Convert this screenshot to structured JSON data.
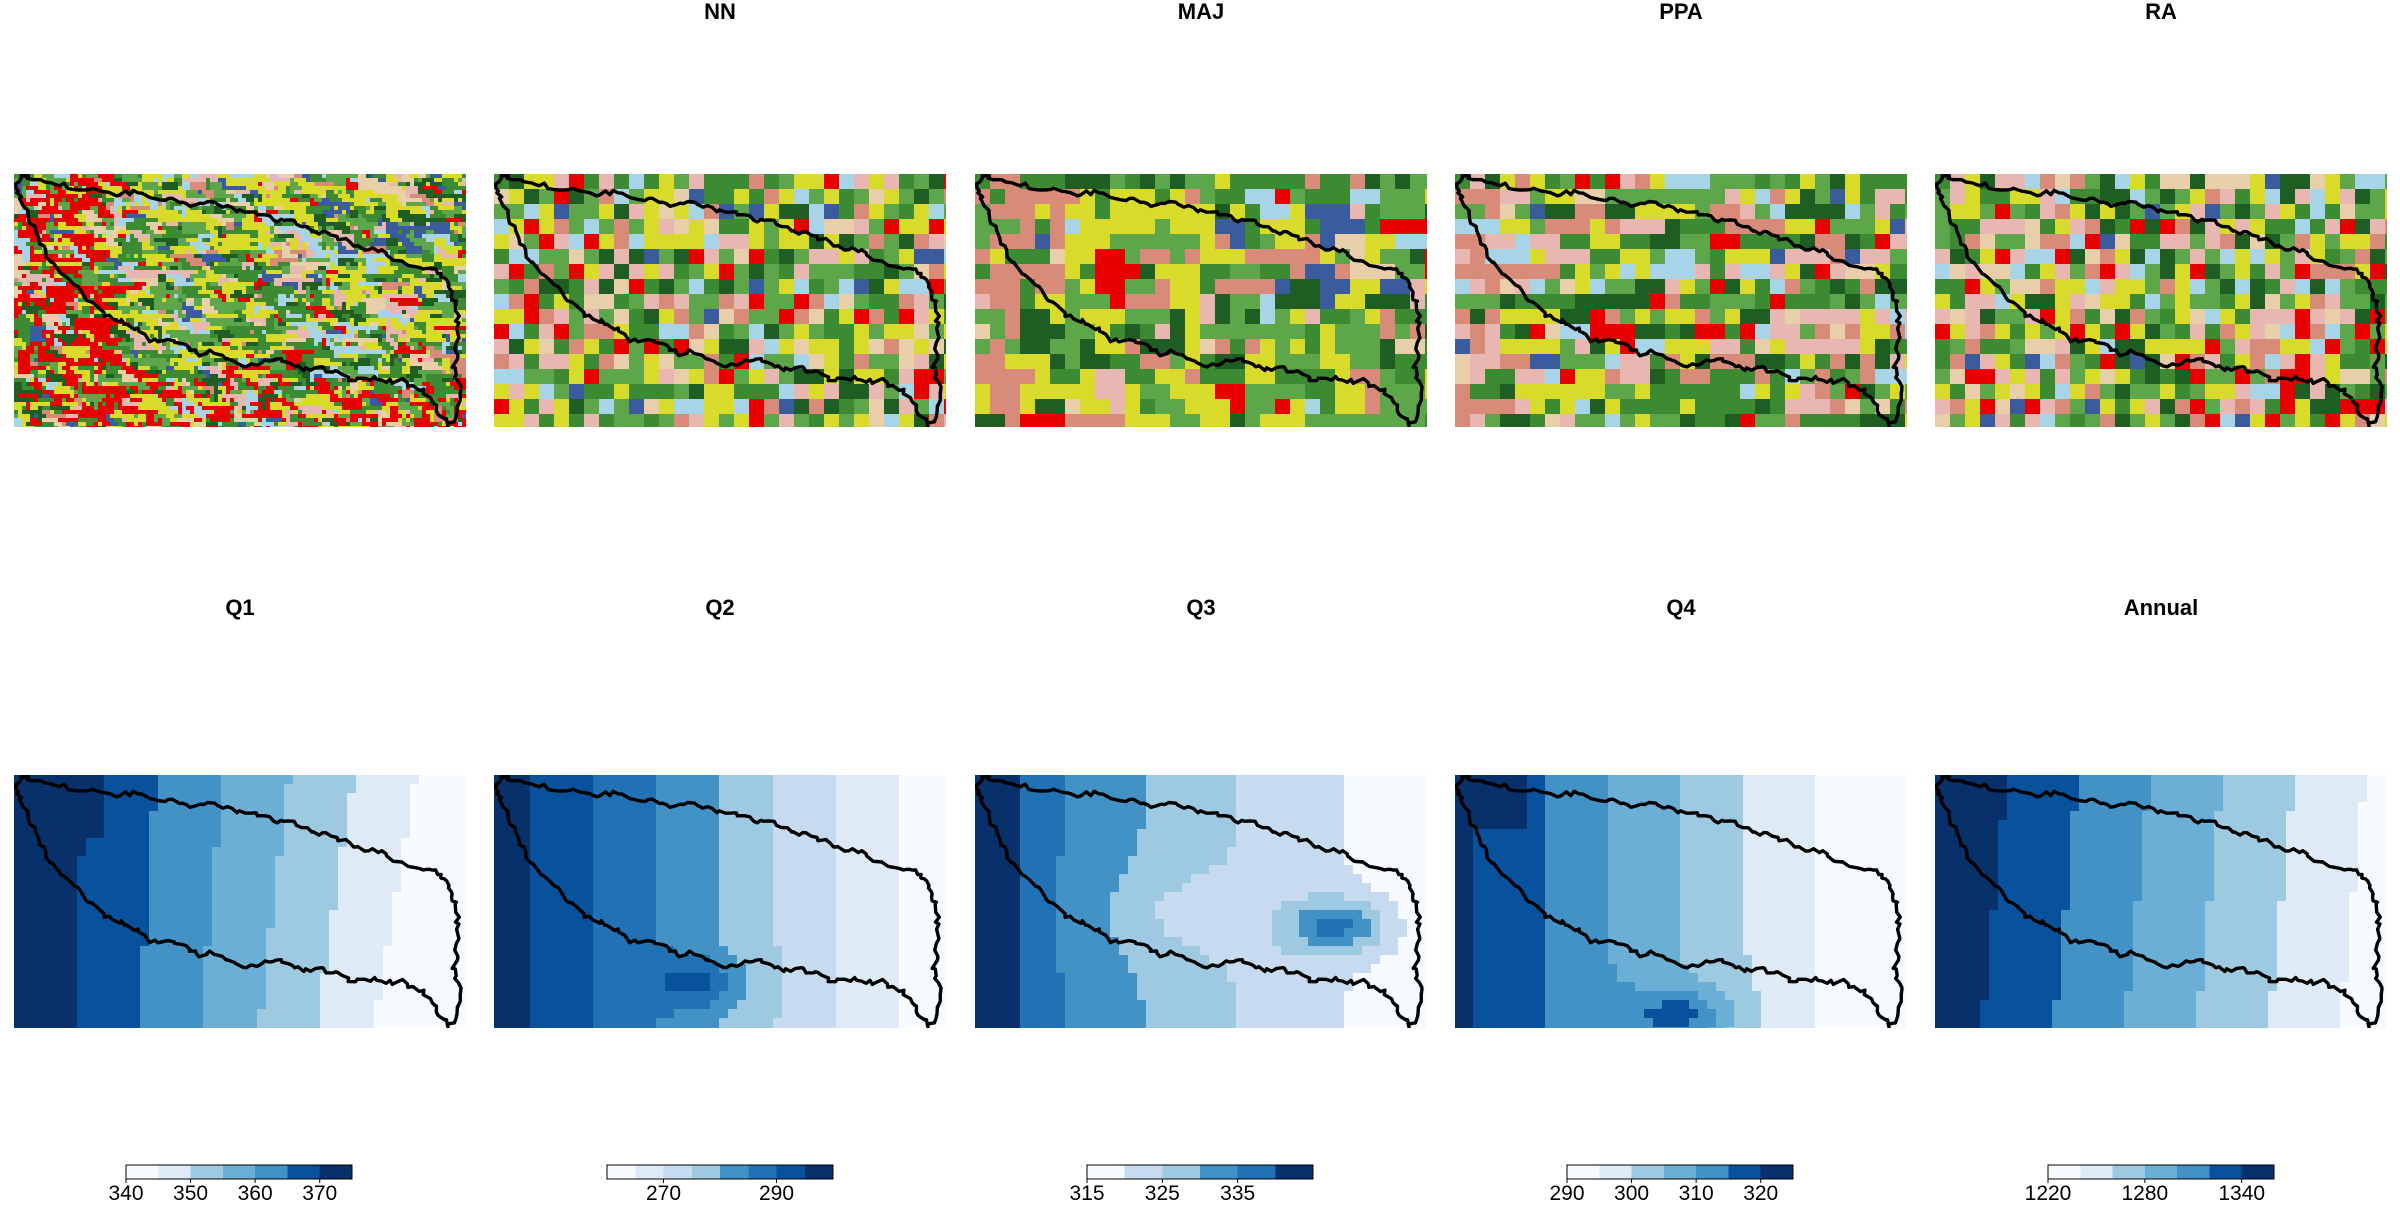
{
  "panels": [
    {
      "id": "orig",
      "title": "",
      "type": "landcover",
      "seed": 11,
      "fine": true
    },
    {
      "id": "nn",
      "title": "NN",
      "type": "landcover",
      "seed": 23
    },
    {
      "id": "maj",
      "title": "MAJ",
      "type": "landcover",
      "seed": 37
    },
    {
      "id": "ppa",
      "title": "PPA",
      "type": "landcover",
      "seed": 51
    },
    {
      "id": "ra",
      "title": "RA",
      "type": "landcover",
      "seed": 71
    },
    {
      "id": "q1",
      "title": "Q1",
      "type": "precip",
      "levels": [
        340,
        345,
        350,
        355,
        360,
        365,
        370,
        375
      ],
      "ticks": [
        340,
        350,
        360,
        370
      ]
    },
    {
      "id": "q2",
      "title": "Q2",
      "type": "precip",
      "levels": [
        260,
        265,
        270,
        275,
        280,
        285,
        290,
        295,
        300
      ],
      "ticks": [
        270,
        290
      ]
    },
    {
      "id": "q3",
      "title": "Q3",
      "type": "precip",
      "levels": [
        315,
        320,
        325,
        330,
        335,
        340,
        345
      ],
      "ticks": [
        315,
        325,
        335
      ]
    },
    {
      "id": "q4",
      "title": "Q4",
      "type": "precip",
      "levels": [
        290,
        295,
        300,
        305,
        310,
        315,
        320,
        325
      ],
      "ticks": [
        290,
        300,
        310,
        320
      ]
    },
    {
      "id": "annual",
      "title": "Annual",
      "type": "precip",
      "levels": [
        1220,
        1240,
        1260,
        1280,
        1300,
        1320,
        1340,
        1360
      ],
      "ticks": [
        1220,
        1280,
        1340
      ]
    }
  ],
  "colors": {
    "landcover": [
      "#5ea64a",
      "#3c8b32",
      "#1f5e23",
      "#d9db2b",
      "#e9cfa9",
      "#d98b79",
      "#e8b7b2",
      "#e80000",
      "#a8d4e8",
      "#3a5b9c"
    ],
    "blues": [
      "#f7fbff",
      "#deebf7",
      "#c6dbef",
      "#9ecae1",
      "#6baed6",
      "#4292c6",
      "#2171b5",
      "#08519c",
      "#08306b"
    ],
    "boundary": "#000000"
  }
}
